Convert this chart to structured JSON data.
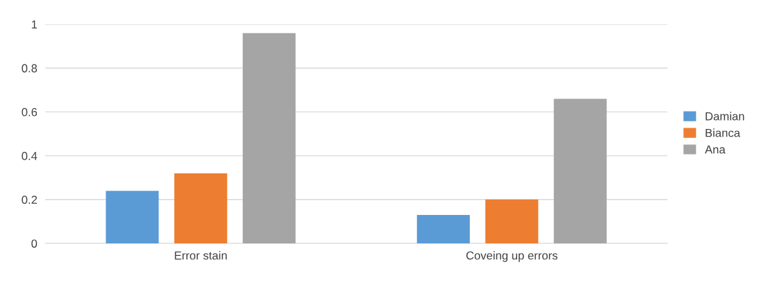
{
  "chart_data": {
    "type": "bar",
    "categories": [
      "Error stain",
      "Coveing up errors"
    ],
    "series": [
      {
        "name": "Damian",
        "color": "#5b9bd5",
        "values": [
          0.24,
          0.13
        ]
      },
      {
        "name": "Bianca",
        "color": "#ed7d31",
        "values": [
          0.32,
          0.2
        ]
      },
      {
        "name": "Ana",
        "color": "#a5a5a5",
        "values": [
          0.96,
          0.66
        ]
      }
    ],
    "ylim": [
      0,
      1
    ],
    "yticks": [
      0,
      0.2,
      0.4,
      0.6,
      0.8,
      1
    ],
    "grid": "y",
    "legend": "right"
  }
}
